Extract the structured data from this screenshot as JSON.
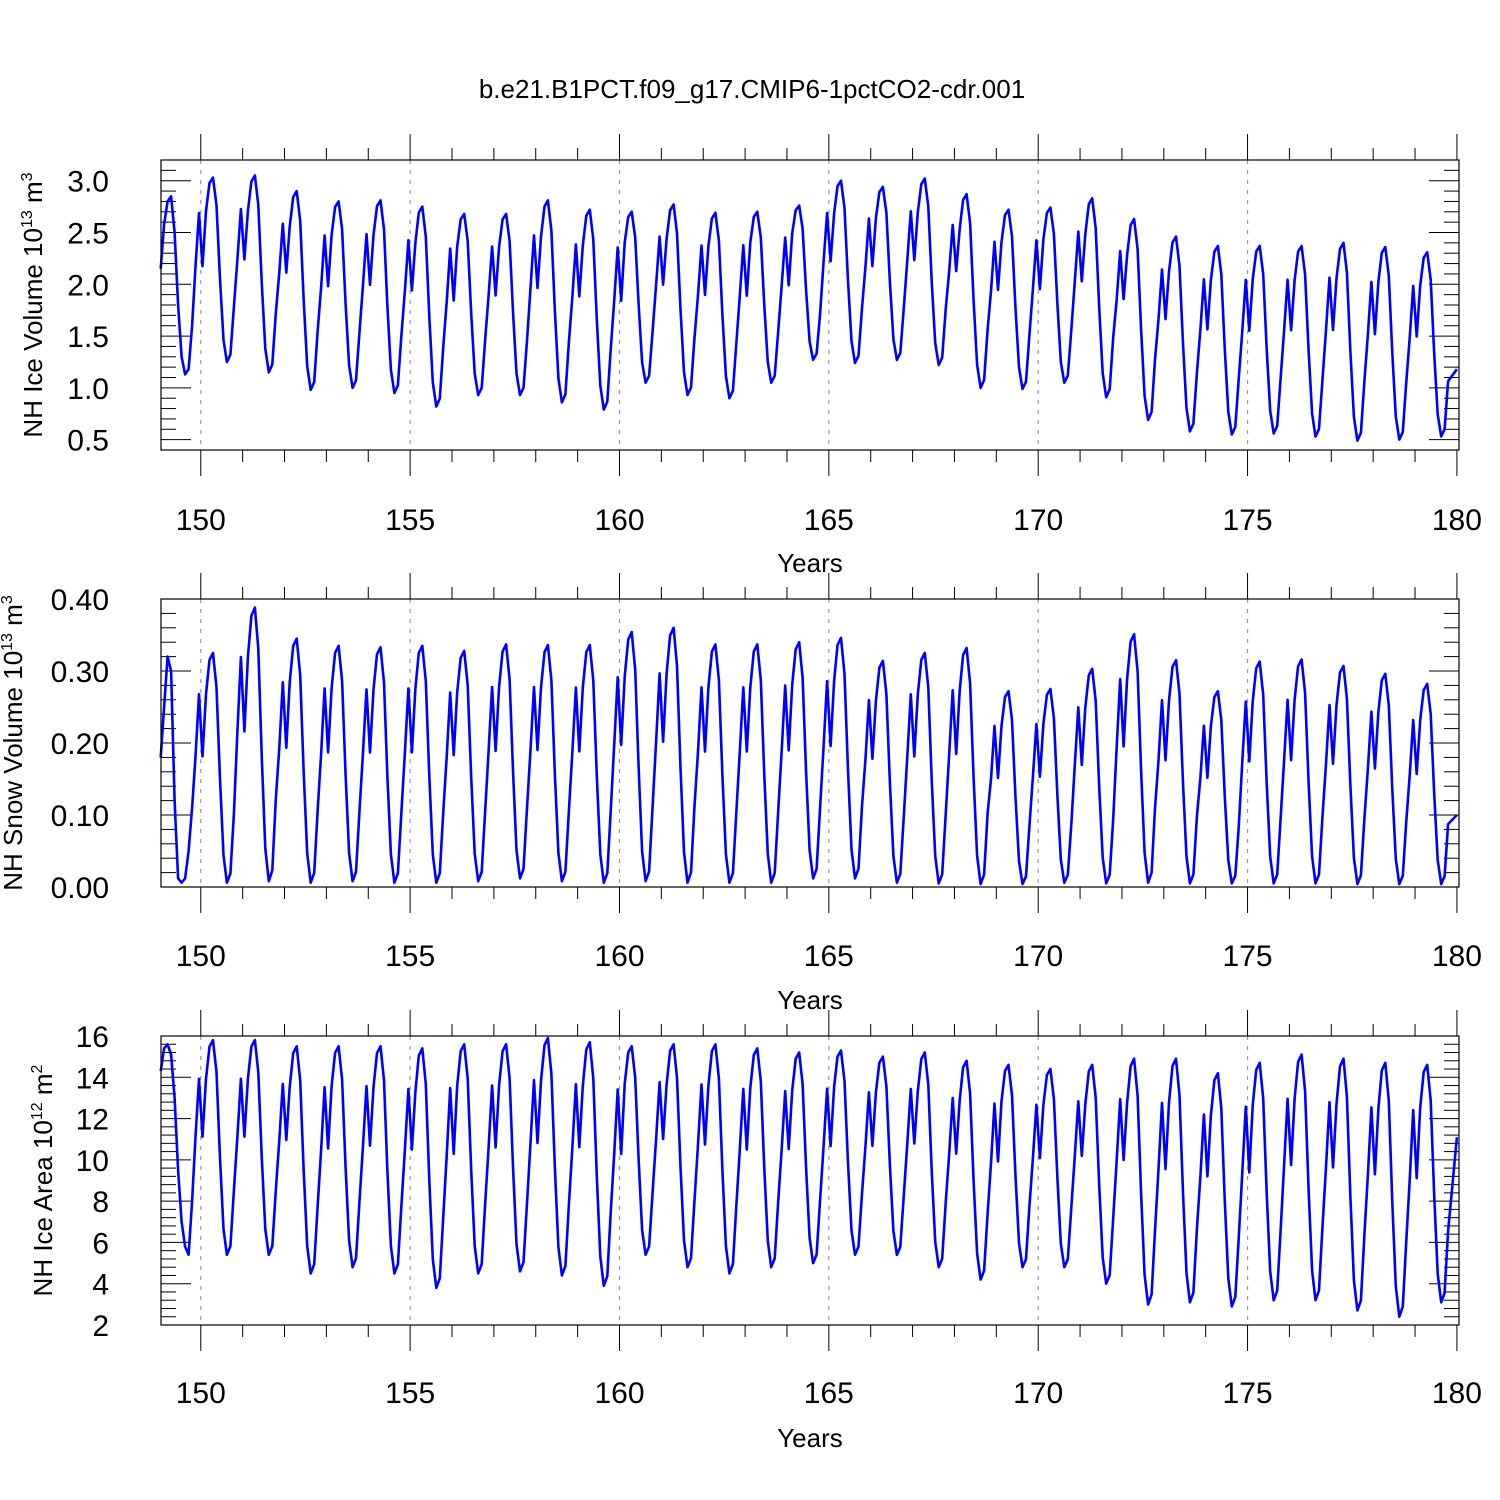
{
  "title": "b.e21.B1PCT.f09_g17.CMIP6-1pctCO2-cdr.001",
  "colors": {
    "series": "#0000ff",
    "axis": "#000000",
    "grid": "#999999"
  },
  "chart_data": [
    {
      "type": "line",
      "xlabel": "Years",
      "ylabel": "NH Ice Volume 10",
      "ylabel_sup1": "13",
      "ylabel_mid": " m",
      "ylabel_sup2": "3",
      "xlim": [
        149.05,
        180.05
      ],
      "ylim": [
        0.4,
        3.2
      ],
      "xticks": [
        150,
        155,
        160,
        165,
        170,
        175,
        180
      ],
      "xtick_labels": [
        "150",
        "155",
        "160",
        "165",
        "170",
        "175",
        "180"
      ],
      "yticks": [
        0.5,
        1.0,
        1.5,
        2.0,
        2.5,
        3.0
      ],
      "ytick_labels": [
        "0.5",
        "1.0",
        "1.5",
        "2.0",
        "2.5",
        "3.0"
      ],
      "vgrid": [
        150,
        155,
        160,
        165,
        170,
        175
      ],
      "series": [
        {
          "start": 149.0417,
          "step_years": 0.08333,
          "months": [
            2.15,
            2.58,
            2.8,
            2.85,
            2.5,
            1.8,
            1.3,
            1.13,
            1.18,
            1.6
          ],
          "max": [
            2.87,
            3.03,
            3.05,
            2.9,
            2.8,
            2.81,
            2.75,
            2.68,
            2.68,
            2.81,
            2.72,
            2.7,
            2.77,
            2.69,
            2.7,
            2.76,
            3.0,
            2.94,
            3.02,
            2.87,
            2.72,
            2.74,
            2.83,
            2.63,
            2.46,
            2.37,
            2.37,
            2.37,
            2.4,
            2.36,
            2.31
          ],
          "min": [
            1.13,
            1.25,
            1.15,
            0.98,
            1.0,
            0.95,
            0.82,
            0.93,
            0.93,
            0.86,
            0.79,
            1.05,
            0.93,
            0.9,
            1.05,
            1.27,
            1.24,
            1.27,
            1.22,
            1.0,
            0.99,
            1.05,
            0.91,
            0.69,
            0.58,
            0.55,
            0.56,
            0.53,
            0.49,
            0.5,
            0.53
          ],
          "end_value": 1.18
        }
      ]
    },
    {
      "type": "line",
      "xlabel": "Years",
      "ylabel": "NH Snow Volume 10",
      "ylabel_sup1": "13",
      "ylabel_mid": " m",
      "ylabel_sup2": "3",
      "xlim": [
        149.05,
        180.05
      ],
      "ylim": [
        0.0,
        0.4
      ],
      "xticks": [
        150,
        155,
        160,
        165,
        170,
        175,
        180
      ],
      "xtick_labels": [
        "150",
        "155",
        "160",
        "165",
        "170",
        "175",
        "180"
      ],
      "yticks": [
        0.0,
        0.1,
        0.2,
        0.3,
        0.4
      ],
      "ytick_labels": [
        "0.00",
        "0.10",
        "0.20",
        "0.30",
        "0.40"
      ],
      "vgrid": [
        150,
        155,
        160,
        165,
        170,
        175
      ],
      "series": [
        {
          "start": 149.0417,
          "step_years": 0.08333,
          "months": [
            0.18,
            0.25,
            0.32,
            0.3,
            0.12,
            0.012,
            0.006,
            0.012,
            0.05,
            0.11
          ],
          "max": [
            0.325,
            0.325,
            0.388,
            0.345,
            0.335,
            0.333,
            0.335,
            0.328,
            0.337,
            0.336,
            0.336,
            0.354,
            0.36,
            0.337,
            0.337,
            0.34,
            0.346,
            0.314,
            0.325,
            0.332,
            0.272,
            0.275,
            0.303,
            0.351,
            0.315,
            0.272,
            0.313,
            0.316,
            0.307,
            0.296,
            0.282
          ],
          "min": [
            0.006,
            0.006,
            0.008,
            0.006,
            0.008,
            0.006,
            0.006,
            0.008,
            0.012,
            0.008,
            0.006,
            0.008,
            0.006,
            0.006,
            0.006,
            0.012,
            0.012,
            0.006,
            0.005,
            0.004,
            0.004,
            0.006,
            0.005,
            0.006,
            0.005,
            0.005,
            0.005,
            0.005,
            0.004,
            0.004,
            0.004
          ],
          "end_value": 0.1
        }
      ]
    },
    {
      "type": "line",
      "xlabel": "Years",
      "ylabel": "NH Ice Area 10",
      "ylabel_sup1": "12",
      "ylabel_mid": " m",
      "ylabel_sup2": "2",
      "xlim": [
        149.05,
        180.05
      ],
      "ylim": [
        2.0,
        16.0
      ],
      "xticks": [
        150,
        155,
        160,
        165,
        170,
        175,
        180
      ],
      "xtick_labels": [
        "150",
        "155",
        "160",
        "165",
        "170",
        "175",
        "180"
      ],
      "yticks": [
        2,
        4,
        6,
        8,
        10,
        12,
        14,
        16
      ],
      "ytick_labels": [
        "2",
        "4",
        "6",
        "8",
        "10",
        "12",
        "14",
        "16"
      ],
      "vgrid": [
        150,
        155,
        160,
        165,
        170,
        175
      ],
      "series": [
        {
          "start": 149.0417,
          "step_years": 0.08333,
          "months": [
            14.3,
            15.4,
            15.6,
            15.1,
            13.0,
            9.5,
            7.0,
            5.8,
            5.4,
            8.0
          ],
          "max": [
            15.6,
            15.8,
            15.8,
            15.5,
            15.5,
            15.5,
            15.4,
            15.6,
            15.6,
            15.9,
            15.7,
            15.5,
            15.6,
            15.6,
            15.4,
            15.2,
            15.3,
            15.0,
            15.2,
            14.8,
            14.6,
            14.4,
            14.6,
            14.9,
            14.9,
            14.2,
            14.7,
            15.1,
            14.9,
            14.7,
            14.6
          ],
          "min": [
            5.4,
            5.4,
            5.4,
            4.5,
            4.8,
            4.5,
            3.8,
            4.5,
            4.6,
            4.4,
            3.9,
            5.4,
            4.8,
            4.5,
            4.8,
            5.0,
            5.4,
            5.4,
            4.8,
            4.2,
            4.8,
            4.8,
            4.0,
            3.0,
            3.1,
            2.9,
            3.2,
            3.2,
            2.7,
            2.4,
            3.1
          ],
          "end_value": 11.1
        }
      ]
    }
  ]
}
